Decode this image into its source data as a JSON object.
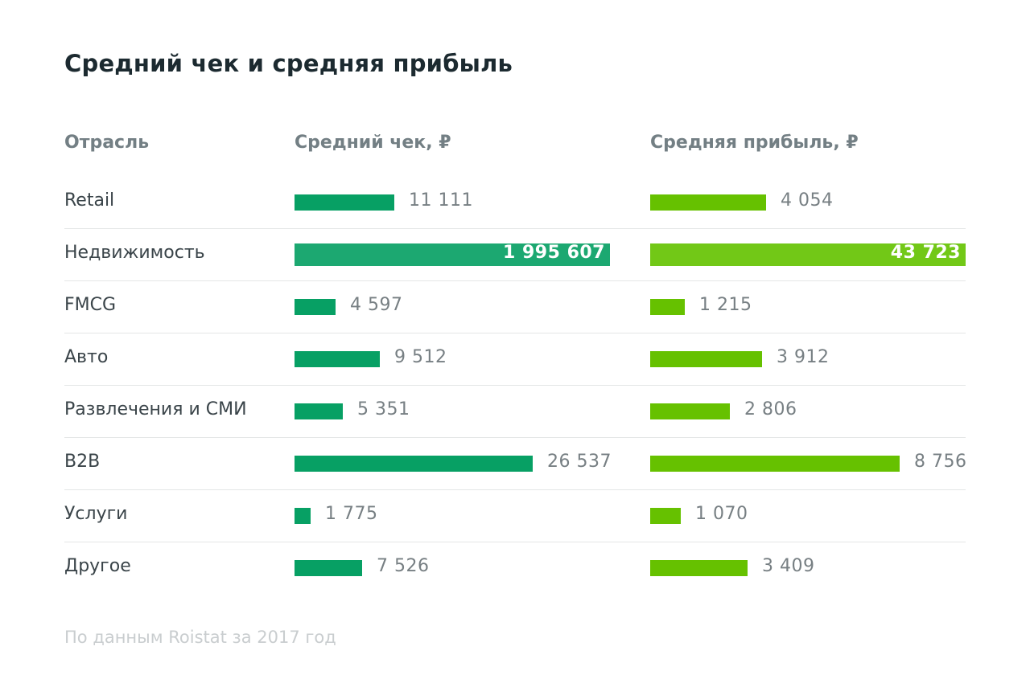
{
  "title": "Средний чек и средняя прибыль",
  "headers": {
    "industry": "Отрасль",
    "check": "Средний чек, ₽",
    "profit": "Средняя прибыль, ₽"
  },
  "footnote": "По данным Roistat за 2017 год",
  "colors": {
    "check_bar": "#07a064",
    "profit_bar": "#66c100"
  },
  "chart_data": {
    "type": "bar",
    "orientation": "horizontal",
    "title": "Средний чек и средняя прибыль",
    "categories": [
      "Retail",
      "Недвижимость",
      "FMCG",
      "Авто",
      "Развлечения и СМИ",
      "B2B",
      "Услуги",
      "Другое"
    ],
    "series": [
      {
        "name": "Средний чек, ₽",
        "values": [
          11111,
          1995607,
          4597,
          9512,
          5351,
          26537,
          1775,
          7526
        ],
        "labels": [
          "11 111",
          "1 995 607",
          "4 597",
          "9 512",
          "5 351",
          "26 537",
          "1 775",
          "7 526"
        ]
      },
      {
        "name": "Средняя прибыль, ₽",
        "values": [
          4054,
          43723,
          1215,
          3912,
          2806,
          8756,
          1070,
          3409
        ],
        "labels": [
          "4 054",
          "43 723",
          "1 215",
          "3 912",
          "2 806",
          "8 756",
          "1 070",
          "3 409"
        ]
      }
    ],
    "max_value_truncated": true
  }
}
